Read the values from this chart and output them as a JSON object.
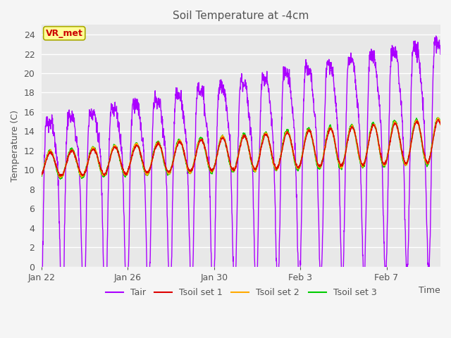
{
  "title": "Soil Temperature at -4cm",
  "xlabel": "Time",
  "ylabel": "Temperature (C)",
  "ylim": [
    0,
    25
  ],
  "yticks": [
    0,
    2,
    4,
    6,
    8,
    10,
    12,
    14,
    16,
    18,
    20,
    22,
    24
  ],
  "xtick_labels": [
    "Jan 22",
    "Jan 26",
    "Jan 30",
    "Feb 3",
    "Feb 7"
  ],
  "xtick_positions": [
    0,
    4,
    8,
    12,
    16
  ],
  "xlim": [
    0,
    18.5
  ],
  "plot_bg_color": "#e8e8e8",
  "fig_bg_color": "#f5f5f5",
  "grid_color": "#ffffff",
  "line_colors": {
    "Tair": "#aa00ff",
    "Tsoil1": "#dd0000",
    "Tsoil2": "#ffaa00",
    "Tsoil3": "#00cc00"
  },
  "legend_labels": [
    "Tair",
    "Tsoil set 1",
    "Tsoil set 2",
    "Tsoil set 3"
  ],
  "vr_met_label": "VR_met",
  "vr_met_color": "#cc0000",
  "vr_met_bg": "#ffff99",
  "vr_met_border": "#aaaa00",
  "title_color": "#555555",
  "axis_label_color": "#555555",
  "tick_label_color": "#555555",
  "n_points": 1800,
  "days": 18.5,
  "air_base_start": 10.5,
  "air_base_end": 15.5,
  "air_amp_start": 4.5,
  "air_amp_end": 8.0,
  "air_trough_extra_start": 3.5,
  "air_trough_extra_end": 0.0,
  "soil_base_start": 10.5,
  "soil_base_end": 13.0,
  "soil_amp_start": 1.2,
  "soil_amp_end": 2.2
}
